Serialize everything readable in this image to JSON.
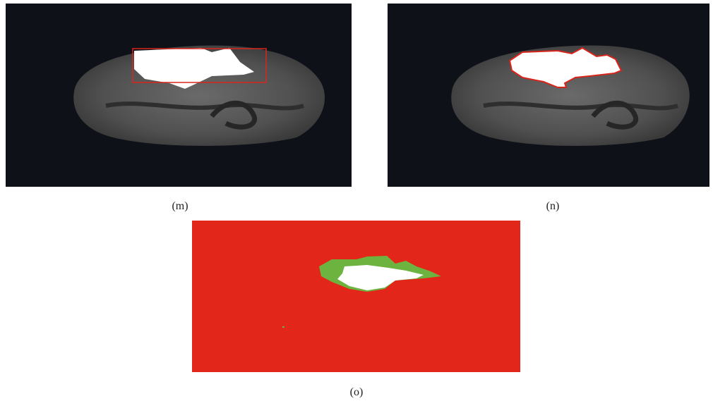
{
  "figure": {
    "panels": [
      {
        "label": "(m)"
      },
      {
        "label": "(n)"
      },
      {
        "label": "(o)"
      }
    ]
  }
}
